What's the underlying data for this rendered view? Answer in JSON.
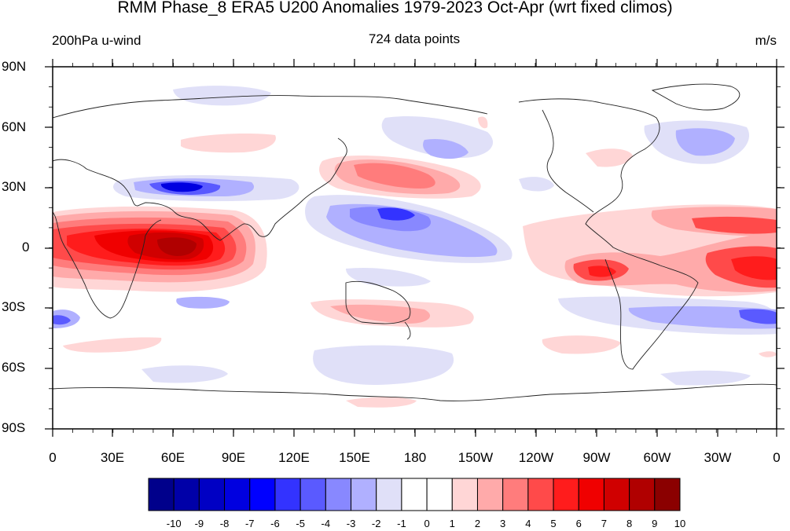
{
  "title": "RMM Phase_8 ERA5 U200 Anomalies 1979-2023 Oct-Apr (wrt fixed climos)",
  "subtitle_left": "200hPa u-wind",
  "subtitle_center": "724 data points",
  "subtitle_right": "m/s",
  "lat_labels": [
    "90N",
    "60N",
    "30N",
    "0",
    "30S",
    "60S",
    "90S"
  ],
  "lon_labels": [
    "0",
    "30E",
    "60E",
    "90E",
    "120E",
    "150E",
    "180",
    "150W",
    "120W",
    "90W",
    "60W",
    "30W",
    "0"
  ],
  "colorbar": {
    "labels": [
      "-10",
      "-9",
      "-8",
      "-7",
      "-6",
      "-5",
      "-4",
      "-3",
      "-2",
      "-1",
      "0",
      "1",
      "2",
      "3",
      "4",
      "5",
      "6",
      "7",
      "8",
      "9",
      "10"
    ],
    "colors": [
      "#00008b",
      "#0000a8",
      "#0000c4",
      "#0000e0",
      "#0000ff",
      "#3333ff",
      "#5a5aff",
      "#8888ff",
      "#b0b0ff",
      "#e0e0f8",
      "#ffffff",
      "#ffffff",
      "#ffd6d6",
      "#ffaaaa",
      "#ff7c7c",
      "#ff4a4a",
      "#ff1c1c",
      "#f00000",
      "#d00000",
      "#b00000",
      "#8b0000"
    ]
  }
}
